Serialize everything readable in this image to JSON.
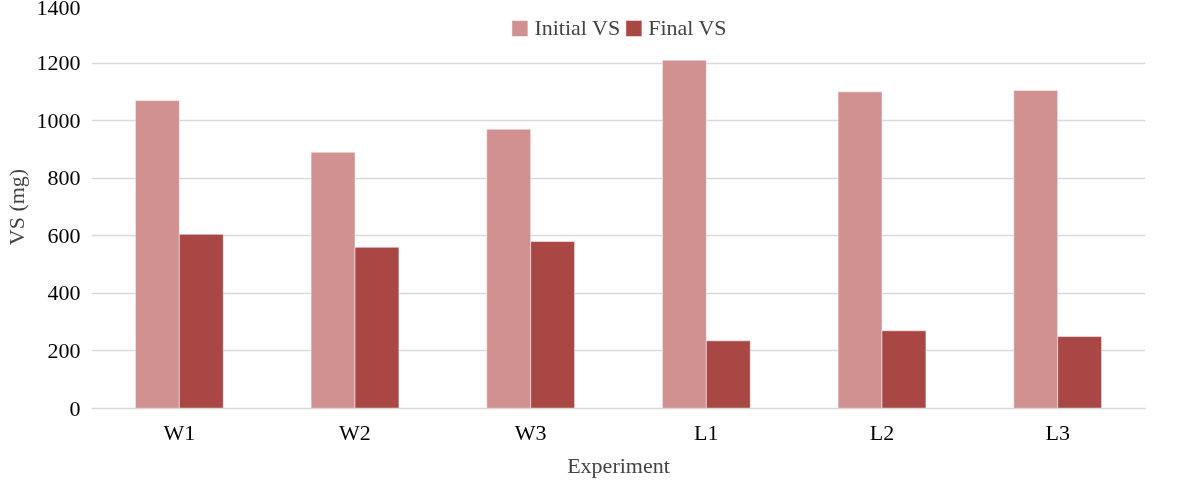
{
  "chart_data": {
    "type": "bar",
    "xlabel": "Experiment",
    "ylabel": "VS (mg)",
    "categories": [
      "W1",
      "W2",
      "W3",
      "L1",
      "L2",
      "L3"
    ],
    "series": [
      {
        "name": "Initial VS",
        "color": "#d19190",
        "values": [
          1070,
          890,
          970,
          1210,
          1100,
          1105
        ]
      },
      {
        "name": "Final VS",
        "color": "#a94744",
        "values": [
          605,
          560,
          580,
          235,
          270,
          250
        ]
      }
    ],
    "ylim": [
      0,
      1400
    ],
    "yticks": [
      0,
      200,
      400,
      600,
      800,
      1000,
      1200,
      1400
    ],
    "grid": "y",
    "legend": "top"
  }
}
